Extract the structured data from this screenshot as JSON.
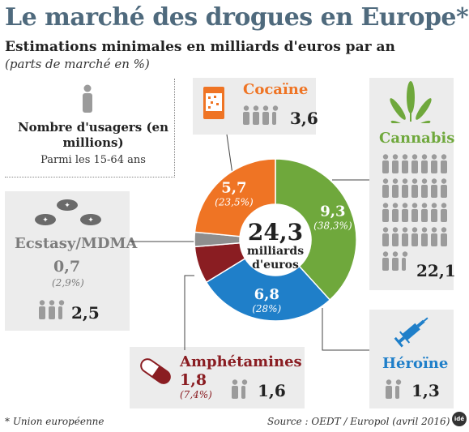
{
  "header": {
    "title": "Le marché des drogues en Europe*",
    "subtitle": "Estimations minimales en milliards d'euros par an",
    "note": "(parts de marché en %)"
  },
  "legend": {
    "title": "Nombre d'usagers (en millions)",
    "subtitle": "Parmi les 15-64 ans"
  },
  "chart_data": {
    "type": "pie",
    "title": "Le marché des drogues en Europe*",
    "total": "24,3",
    "total_unit": "milliards d'euros",
    "slices": [
      {
        "label": "Cannabis",
        "value": 9.3,
        "value_label": "9,3",
        "share_label": "(38,3%)",
        "users": "22,1",
        "color": "#6fa83c"
      },
      {
        "label": "Héroïne",
        "value": 6.8,
        "value_label": "6,8",
        "share_label": "(28%)",
        "users": "1,3",
        "color": "#1f7fc9"
      },
      {
        "label": "Amphétamines",
        "value": 1.8,
        "value_label": "1,8",
        "share_label": "(7,4%)",
        "users": "1,6",
        "color": "#8a1d22"
      },
      {
        "label": "Ecstasy/MDMA",
        "value": 0.7,
        "value_label": "0,7",
        "share_label": "(2,9%)",
        "users": "2,5",
        "color": "#8e8e8e"
      },
      {
        "label": "Cocaïne",
        "value": 5.7,
        "value_label": "5,7",
        "share_label": "(23,5%)",
        "users": "3,6",
        "color": "#ef7424"
      }
    ]
  },
  "footer": {
    "footnote": "* Union européenne",
    "source": "Source : OEDT / Europol (avril 2016)",
    "logo": "idé"
  },
  "colors": {
    "title": "#4f6a7d",
    "cannabis": "#6fa83c",
    "heroine": "#1f7fc9",
    "amphetamines": "#8a1d22",
    "ecstasy": "#8e8e8e",
    "cocaine": "#ef7424",
    "panel": "#ececec",
    "people": "#9b9b9b"
  }
}
